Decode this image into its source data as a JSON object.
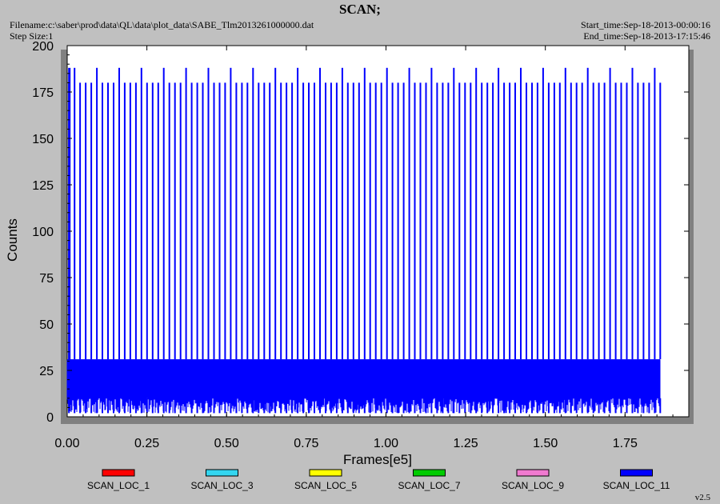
{
  "header": {
    "title": "SCAN;",
    "filename": "Filename:c:\\saber\\prod\\data\\QL\\data\\plot_data\\SABE_Tlm2013261000000.dat",
    "step_size": "Step Size:1",
    "start_time": "Start_time:Sep-18-2013-00:00:16",
    "end_time": "End_time:Sep-18-2013-17:15:46"
  },
  "version": "v2.5",
  "chart_data": {
    "type": "line",
    "title": "SCAN;",
    "xlabel": "Frames[e5]",
    "ylabel": "Counts",
    "xlim": [
      0,
      1.95
    ],
    "ylim": [
      0,
      200
    ],
    "x_ticks": [
      "0.00",
      "0.25",
      "0.50",
      "0.75",
      "1.00",
      "1.25",
      "1.50",
      "1.75"
    ],
    "y_ticks": [
      "0",
      "25",
      "50",
      "75",
      "100",
      "125",
      "150",
      "175",
      "200"
    ],
    "legend_position": "bottom",
    "grid": false,
    "series": [
      {
        "name": "SCAN_LOC_1",
        "color": "#ff0000",
        "values": []
      },
      {
        "name": "SCAN_LOC_3",
        "color": "#33d6f0",
        "values": []
      },
      {
        "name": "SCAN_LOC_5",
        "color": "#ffff00",
        "values": []
      },
      {
        "name": "SCAN_LOC_7",
        "color": "#00cc00",
        "values": []
      },
      {
        "name": "SCAN_LOC_9",
        "color": "#f07ad0",
        "values": []
      },
      {
        "name": "SCAN_LOC_11",
        "color": "#0000ff",
        "pattern": "periodic scan spikes",
        "x_range": [
          0.0,
          1.86
        ],
        "spike_period": 0.0175,
        "spike_high": 180,
        "spike_peak": 188,
        "band_low": 10,
        "band_high": 31
      }
    ]
  }
}
